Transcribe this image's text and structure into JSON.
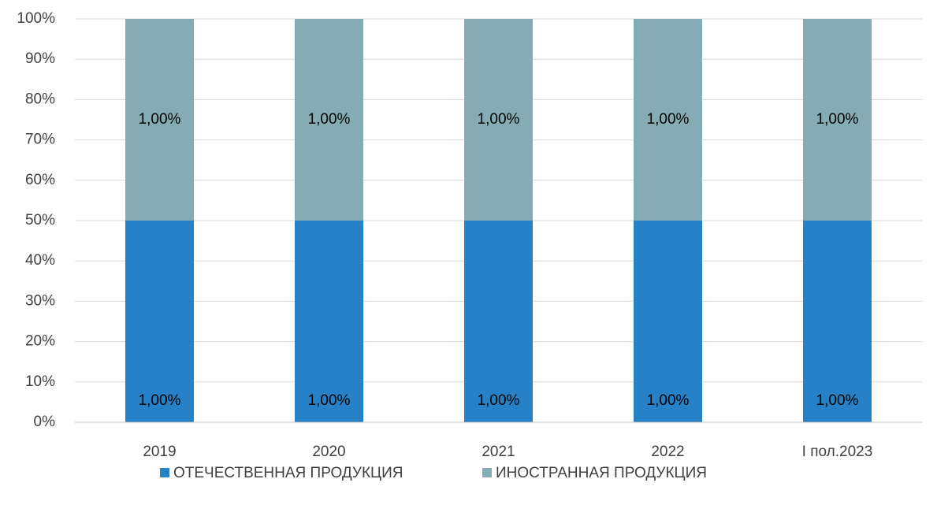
{
  "chart_data": {
    "type": "bar",
    "stacking": "percent",
    "categories": [
      "2019",
      "2020",
      "2021",
      "2022",
      "I пол.2023"
    ],
    "series": [
      {
        "name": "ОТЕЧЕСТВЕННАЯ ПРОДУКЦИЯ",
        "color": "#2781c7",
        "values": [
          1,
          1,
          1,
          1,
          1
        ],
        "value_labels": [
          "1,00%",
          "1,00%",
          "1,00%",
          "1,00%",
          "1,00%"
        ]
      },
      {
        "name": "ИНОСТРАННАЯ ПРОДУКЦИЯ",
        "color": "#85abb5",
        "values": [
          1,
          1,
          1,
          1,
          1
        ],
        "value_labels": [
          "1,00%",
          "1,00%",
          "1,00%",
          "1,00%",
          "1,00%"
        ]
      }
    ],
    "ylim": [
      0,
      100
    ],
    "yticks": [
      {
        "value": 0,
        "label": "0%"
      },
      {
        "value": 10,
        "label": "10%"
      },
      {
        "value": 20,
        "label": "20%"
      },
      {
        "value": 30,
        "label": "30%"
      },
      {
        "value": 40,
        "label": "40%"
      },
      {
        "value": 50,
        "label": "50%"
      },
      {
        "value": 60,
        "label": "60%"
      },
      {
        "value": 70,
        "label": "70%"
      },
      {
        "value": 80,
        "label": "80%"
      },
      {
        "value": 90,
        "label": "90%"
      },
      {
        "value": 100,
        "label": "100%"
      }
    ],
    "grid": true,
    "legend": "bottom"
  }
}
